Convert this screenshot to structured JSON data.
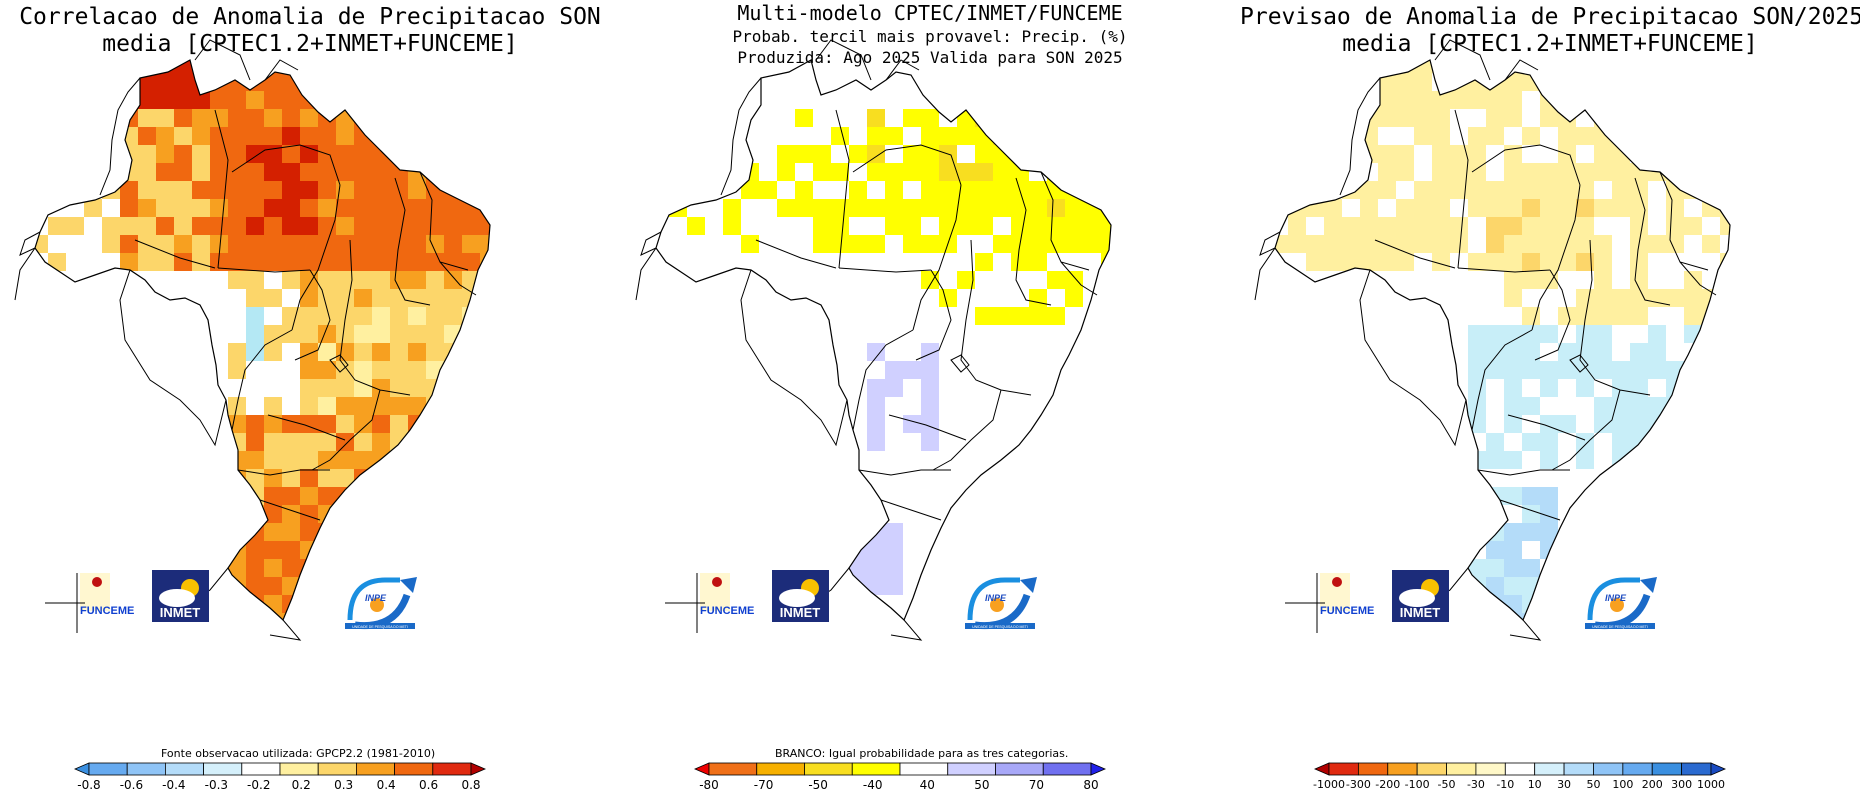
{
  "panels": [
    {
      "title_line1": "Correlacao de Anomalia de Precipitacao SON",
      "title_line2": "media [CPTEC1.2+INMET+FUNCEME]",
      "note": "Fonte observacao utilizada: GPCP2.2 (1981-2010)",
      "colorbar_labels": [
        "-0.8",
        "-0.6",
        "-0.4",
        "-0.3",
        "-0.2",
        "0.2",
        "0.3",
        "0.4",
        "0.6",
        "0.8"
      ],
      "colorbar_colors": [
        "#3a8fe0",
        "#66aaf0",
        "#8fc4f6",
        "#b4dcf9",
        "#d5f0fb",
        "#ffffff",
        "#fff0a0",
        "#fcd66a",
        "#f7a020",
        "#f06810",
        "#e02a10",
        "#b00000"
      ]
    },
    {
      "title_line1": "Multi-modelo CPTEC/INMET/FUNCEME",
      "title_line2": "Probab. tercil mais provavel: Precip. (%)",
      "title_line3": "Produzida: Ago 2025  Valida para SON 2025",
      "note": "BRANCO: Igual probabilidade para as tres categorias.",
      "colorbar_labels": [
        "-80",
        "-70",
        "-50",
        "-40",
        "40",
        "50",
        "70",
        "80"
      ],
      "colorbar_colors": [
        "#ee0000",
        "#f07018",
        "#f6b000",
        "#f8de20",
        "#ffff00",
        "#ffffff",
        "#d0d0ff",
        "#a8a8f8",
        "#7070f0",
        "#2020e8"
      ]
    },
    {
      "title_line1": "Previsao de Anomalia de Precipitacao SON/2025",
      "title_line2": "media [CPTEC1.2+INMET+FUNCEME]",
      "colorbar_labels": [
        "-1000",
        "-300",
        "-200",
        "-100",
        "-50",
        "-30",
        "-10",
        "10",
        "30",
        "50",
        "100",
        "200",
        "300",
        "1000"
      ],
      "colorbar_colors": [
        "#b00000",
        "#e02a10",
        "#f06810",
        "#f7a020",
        "#fcd66a",
        "#fff0a0",
        "#fff8c8",
        "#ffffff",
        "#d5f0fb",
        "#b4dcf9",
        "#8fc4f6",
        "#66aaf0",
        "#3a8fe0",
        "#2a6ad0",
        "#1a4ac0"
      ]
    }
  ],
  "logos": {
    "funceme": "FUNCEME",
    "inmet": "INMET",
    "inpe": "INPE",
    "inpe_sub": "UNIDADE DE PESQUISA DO METI"
  }
}
